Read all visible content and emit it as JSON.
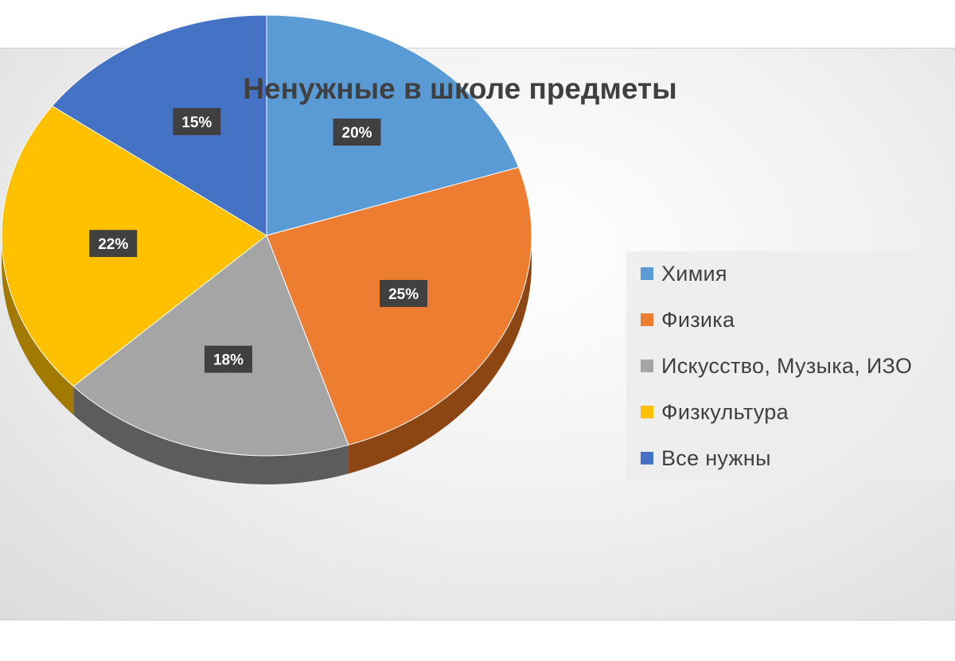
{
  "chart_data": {
    "type": "pie",
    "title": "Ненужные в школе предметы",
    "categories": [
      "Химия",
      "Физика",
      "Искусство, Музыка, ИЗО",
      "Физкультура",
      "Все нужны"
    ],
    "values": [
      20,
      25,
      18,
      22,
      15
    ],
    "data_labels": [
      "20%",
      "25%",
      "18%",
      "22%",
      "15%"
    ],
    "colors": [
      "#5b9bd5",
      "#ed7d31",
      "#a5a5a5",
      "#ffc000",
      "#4472c4"
    ],
    "side_colors": [
      "#3d6e9c",
      "#8c4614",
      "#5c5c5c",
      "#a37a00",
      "#2c4c85"
    ],
    "legend_position": "right",
    "style": "3d-pie"
  }
}
